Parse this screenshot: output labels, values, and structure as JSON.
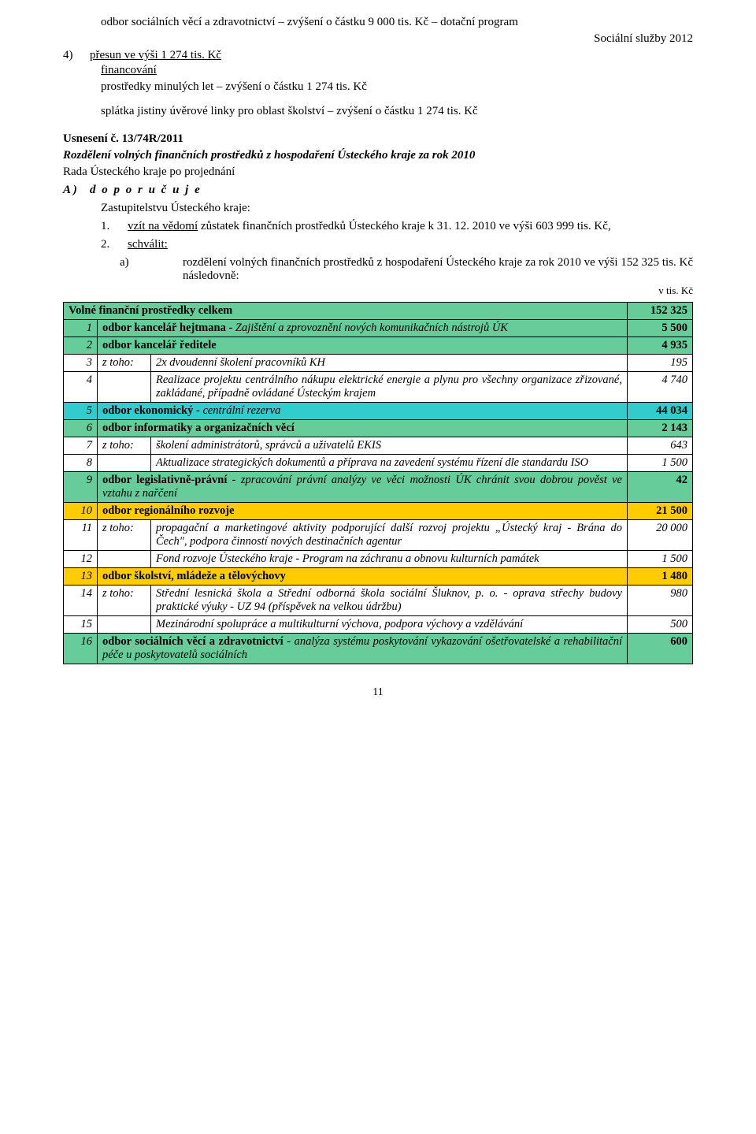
{
  "intro": {
    "line1": "odbor sociálních věcí a zdravotnictví – zvýšení o částku 9 000 tis. Kč – dotační program",
    "line2": "Sociální služby 2012",
    "item4_marker": "4)",
    "item4_text": "přesun ve výši 1 274 tis. Kč",
    "financovani_label": "financování",
    "financovani_text": "prostředky minulých let – zvýšení o částku 1 274 tis. Kč",
    "splatka": "splátka jistiny úvěrové linky pro oblast školství – zvýšení o částku 1 274 tis. Kč"
  },
  "usneseni": {
    "label": "Usnesení č. 13/74R/2011",
    "title": "Rozdělení volných finančních prostředků z hospodaření Ústeckého kraje za rok 2010",
    "rada": "Rada Ústeckého kraje po projednání",
    "a_marker": "A )",
    "a_text": "d o p o r u č u j e",
    "zastup": "Zastupitelstvu Ústeckého kraje:",
    "p1_marker": "1.",
    "p1_text_pre": "vzít na vědomí",
    "p1_text_rest": " zůstatek finančních prostředků Ústeckého kraje k 31. 12. 2010 ve výši 603 999 tis. Kč,",
    "p2_marker": "2.",
    "p2_text": "schválit:",
    "p2a_marker": "a)",
    "p2a_text": "rozdělení volných finančních prostředků z hospodaření Ústeckého kraje za rok 2010 ve výši 152 325 tis. Kč následovně:"
  },
  "unit": "v tis. Kč",
  "table": {
    "head_label": "Volné finanční prostředky celkem",
    "head_val": "152 325",
    "rows": [
      {
        "n": "1",
        "ztoho": "",
        "desc_pre": "odbor kancelář hejtmana",
        "desc_rest": " - Zajištění a zprovoznění nových komunikačních nástrojů ÚK",
        "val": "5 500",
        "cls": "green",
        "bold_pre": true,
        "italic_rest": true,
        "val_bold": true
      },
      {
        "n": "2",
        "ztoho": "",
        "desc_pre": "odbor kancelář ředitele",
        "desc_rest": "",
        "val": "4 935",
        "cls": "green",
        "bold_pre": true,
        "val_bold": true
      },
      {
        "n": "3",
        "ztoho": "z toho:",
        "desc_pre": "",
        "desc_rest": "2x dvoudenní školení pracovníků KH",
        "val": "195",
        "cls": "white",
        "italic_rest": true,
        "italic_val": true
      },
      {
        "n": "4",
        "ztoho": "",
        "desc_pre": "",
        "desc_rest": "Realizace projektu centrálního nákupu elektrické energie a plynu pro všechny organizace zřizované, zakládané, případně ovládané Ústeckým krajem",
        "val": "4 740",
        "cls": "white",
        "italic_rest": true,
        "italic_val": true
      },
      {
        "n": "5",
        "ztoho": "",
        "desc_pre": "odbor ekonomický",
        "desc_rest": " - centrální rezerva",
        "val": "44 034",
        "cls": "turq",
        "bold_pre": true,
        "italic_rest": true,
        "val_bold": true
      },
      {
        "n": "6",
        "ztoho": "",
        "desc_pre": "odbor informatiky a organizačních věcí",
        "desc_rest": "",
        "val": "2 143",
        "cls": "green",
        "bold_pre": true,
        "val_bold": true
      },
      {
        "n": "7",
        "ztoho": "z toho:",
        "desc_pre": "",
        "desc_rest": "školení administrátorů, správců a uživatelů EKIS",
        "val": "643",
        "cls": "white",
        "italic_rest": true,
        "italic_val": true
      },
      {
        "n": "8",
        "ztoho": "",
        "desc_pre": "",
        "desc_rest": "Aktualizace strategických dokumentů a příprava na zavedení systému řízení dle standardu ISO",
        "val": "1 500",
        "cls": "white",
        "italic_rest": true,
        "italic_val": true
      },
      {
        "n": "9",
        "ztoho": "",
        "desc_pre": "odbor legislativně-právní",
        "desc_rest": " - zpracování právní analýzy ve věci možnosti ÚK chránit svou dobrou pověst ve vztahu z nařčení",
        "val": "42",
        "cls": "green",
        "bold_pre": true,
        "italic_rest": true,
        "val_bold": true
      },
      {
        "n": "10",
        "ztoho": "",
        "desc_pre": "odbor  regionálního rozvoje",
        "desc_rest": "",
        "val": "21 500",
        "cls": "orange",
        "bold_pre": true,
        "val_bold": true
      },
      {
        "n": "11",
        "ztoho": "z toho:",
        "desc_pre": "",
        "desc_rest": "propagační a marketingové aktivity podporující další rozvoj projektu „Ústecký kraj - Brána do Čech\", podpora činností nových destinačních agentur",
        "val": "20 000",
        "cls": "white",
        "italic_rest": true,
        "italic_val": true
      },
      {
        "n": "12",
        "ztoho": "",
        "desc_pre": "",
        "desc_rest": "Fond rozvoje Ústeckého kraje - Program na záchranu a obnovu kulturních památek",
        "val": "1 500",
        "cls": "white",
        "italic_rest": true,
        "italic_val": true
      },
      {
        "n": "13",
        "ztoho": "",
        "desc_pre": "odbor školství, mládeže a tělovýchovy",
        "desc_rest": "",
        "val": "1 480",
        "cls": "orange",
        "bold_pre": true,
        "val_bold": true
      },
      {
        "n": "14",
        "ztoho": "z toho:",
        "desc_pre": "",
        "desc_rest": "Střední lesnická škola a Střední odborná škola sociální Šluknov, p. o. - oprava střechy budovy praktické výuky - UZ 94 (příspěvek na velkou údržbu)",
        "val": "980",
        "cls": "white",
        "italic_rest": true,
        "italic_val": true
      },
      {
        "n": "15",
        "ztoho": "",
        "desc_pre": "",
        "desc_rest": "Mezinárodní spolupráce a multikulturní výchova, podpora výchovy a vzdělávání",
        "val": "500",
        "cls": "white",
        "italic_rest": true,
        "italic_val": true
      },
      {
        "n": "16",
        "ztoho": "",
        "desc_pre": "odbor sociálních věcí a zdravotnictví",
        "desc_rest": " - analýza systému poskytování vykazování ošetřovatelské a rehabilitační péče u poskytovatelů sociálních",
        "val": "600",
        "cls": "green",
        "bold_pre": true,
        "italic_rest": true,
        "val_bold": true
      }
    ]
  },
  "page_number": "11"
}
